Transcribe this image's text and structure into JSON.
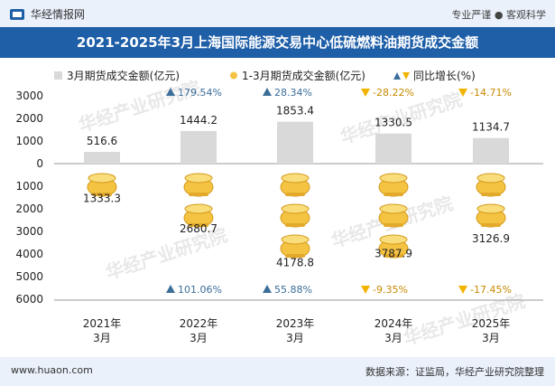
{
  "header": {
    "brand": "华经情报网",
    "tagline": "专业严谨 ● 客观科学"
  },
  "footer": {
    "website": "www.huaon.com",
    "source": "数据来源：证监局，华经产业研究院整理"
  },
  "colors": {
    "title_bg": "#1f5fa8",
    "bar": "#d9d9d9",
    "coin": "#f5c342",
    "up_arrow": "#3c6e9a",
    "down_arrow": "#f2b300",
    "header_bg": "#eaf1fb"
  },
  "chart_data": {
    "type": "bar",
    "title": "2021-2025年3月上海国际能源交易中心低硫燃料油期货成交金额",
    "categories": [
      "2021年\n3月",
      "2022年\n3月",
      "2023年\n3月",
      "2024年\n3月",
      "2025年\n3月"
    ],
    "series": [
      {
        "name": "3月期货成交金额(亿元)",
        "values": [
          516.6,
          1444.2,
          1853.4,
          1330.5,
          1134.7
        ],
        "labels": [
          "516.6",
          "1444.2",
          "1853.4",
          "1330.5",
          "1134.7"
        ]
      },
      {
        "name": "1-3月期货成交金额(亿元)",
        "values": [
          1333.3,
          2680.7,
          4178.8,
          3787.9,
          3126.9
        ],
        "labels": [
          "1333.3",
          "2680.7",
          "4178.8",
          "3787.9",
          "3126.9"
        ]
      }
    ],
    "yoy_legend": "同比增长(%)",
    "yoy_monthly": [
      "",
      "179.54%",
      "28.34%",
      "-28.22%",
      "-14.71%"
    ],
    "yoy_ytd": [
      "",
      "101.06%",
      "55.88%",
      "-9.35%",
      "-17.45%"
    ],
    "yticks_upper": [
      "3000",
      "2000",
      "1000",
      "0"
    ],
    "yticks_lower": [
      "1000",
      "2000",
      "3000",
      "4000",
      "5000",
      "6000"
    ],
    "ylim_upper": [
      0,
      3000
    ],
    "ylim_lower": [
      0,
      6000
    ],
    "watermark": "华经产业研究院"
  }
}
